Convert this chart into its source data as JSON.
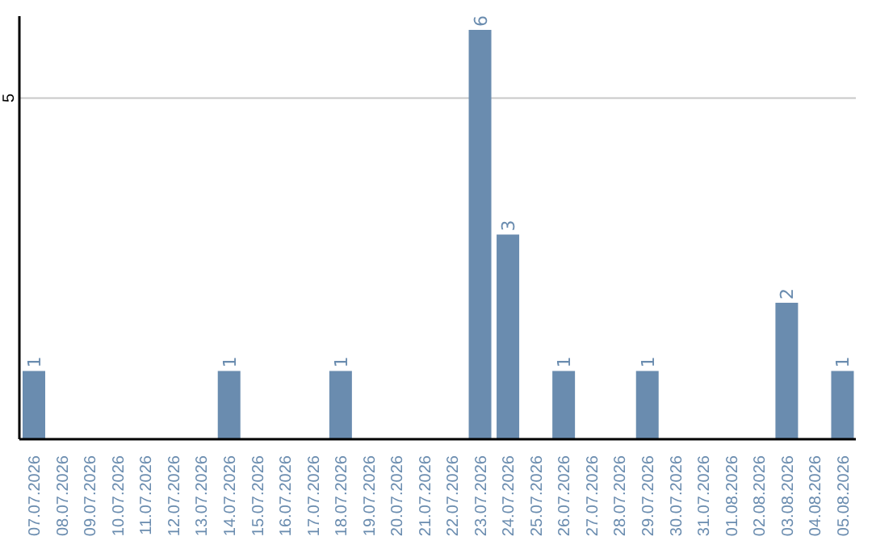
{
  "chart_data": {
    "type": "bar",
    "categories": [
      "07.07.2026",
      "08.07.2026",
      "09.07.2026",
      "10.07.2026",
      "11.07.2026",
      "12.07.2026",
      "13.07.2026",
      "14.07.2026",
      "15.07.2026",
      "16.07.2026",
      "17.07.2026",
      "18.07.2026",
      "19.07.2026",
      "20.07.2026",
      "21.07.2026",
      "22.07.2026",
      "23.07.2026",
      "24.07.2026",
      "25.07.2026",
      "26.07.2026",
      "27.07.2026",
      "28.07.2026",
      "29.07.2026",
      "30.07.2026",
      "31.07.2026",
      "01.08.2026",
      "02.08.2026",
      "03.08.2026",
      "04.08.2026",
      "05.08.2026"
    ],
    "values": [
      1,
      0,
      0,
      0,
      0,
      0,
      0,
      1,
      0,
      0,
      0,
      1,
      0,
      0,
      0,
      0,
      6,
      3,
      0,
      1,
      0,
      0,
      1,
      0,
      0,
      0,
      0,
      2,
      0,
      1
    ],
    "value_labels": [
      "1",
      null,
      null,
      null,
      null,
      null,
      null,
      "1",
      null,
      null,
      null,
      "1",
      null,
      null,
      null,
      null,
      "6",
      "3",
      null,
      "1",
      null,
      null,
      "1",
      null,
      null,
      null,
      null,
      "2",
      null,
      "1"
    ],
    "color": "#6a8caf",
    "ylim": [
      0,
      6.2
    ],
    "yticks": [
      5
    ],
    "grid": "y",
    "legend": false
  }
}
